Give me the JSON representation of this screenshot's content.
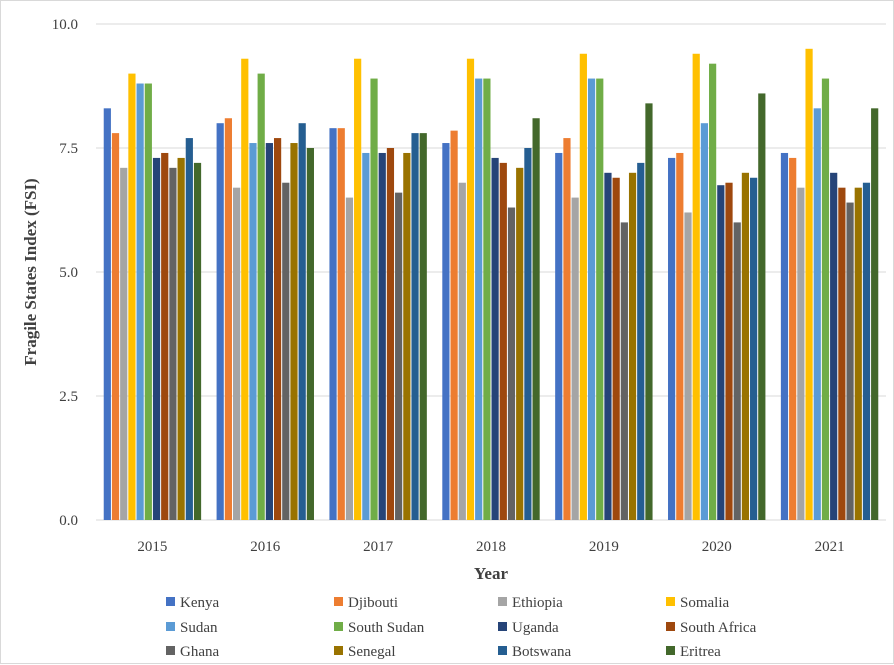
{
  "chart_data": {
    "type": "bar",
    "title": "",
    "xlabel": "Year",
    "ylabel": "Fragile States Index (FSI)",
    "ylim": [
      0,
      10
    ],
    "yticks": [
      "0.0",
      "2.5",
      "5.0",
      "7.5",
      "10.0"
    ],
    "grid": true,
    "legend_position": "bottom",
    "categories": [
      "2015",
      "2016",
      "2017",
      "2018",
      "2019",
      "2020",
      "2021"
    ],
    "series": [
      {
        "name": "Kenya",
        "color": "#4472C4",
        "values": [
          8.3,
          8.0,
          7.9,
          7.6,
          7.4,
          7.3,
          7.4
        ]
      },
      {
        "name": "Djibouti",
        "color": "#ED7D31",
        "values": [
          7.8,
          8.1,
          7.9,
          7.85,
          7.7,
          7.4,
          7.3
        ]
      },
      {
        "name": "Ethiopia",
        "color": "#A5A5A5",
        "values": [
          7.1,
          6.7,
          6.5,
          6.8,
          6.5,
          6.2,
          6.7
        ]
      },
      {
        "name": "Somalia",
        "color": "#FFC000",
        "values": [
          9.0,
          9.3,
          9.3,
          9.3,
          9.4,
          9.4,
          9.5
        ]
      },
      {
        "name": "Sudan",
        "color": "#5B9BD5",
        "values": [
          8.8,
          7.6,
          7.4,
          8.9,
          8.9,
          8.0,
          8.3
        ]
      },
      {
        "name": "South Sudan",
        "color": "#70AD47",
        "values": [
          8.8,
          9.0,
          8.9,
          8.9,
          8.9,
          9.2,
          8.9
        ]
      },
      {
        "name": "Uganda",
        "color": "#264478",
        "values": [
          7.3,
          7.6,
          7.4,
          7.3,
          7.0,
          6.75,
          7.0
        ]
      },
      {
        "name": "South Africa",
        "color": "#9E480E",
        "values": [
          7.4,
          7.7,
          7.5,
          7.2,
          6.9,
          6.8,
          6.7
        ]
      },
      {
        "name": "Ghana",
        "color": "#636363",
        "values": [
          7.1,
          6.8,
          6.6,
          6.3,
          6.0,
          6.0,
          6.4
        ]
      },
      {
        "name": "Senegal",
        "color": "#997300",
        "values": [
          7.3,
          7.6,
          7.4,
          7.1,
          7.0,
          7.0,
          6.7
        ]
      },
      {
        "name": "Botswana",
        "color": "#255E91",
        "values": [
          7.7,
          8.0,
          7.8,
          7.5,
          7.2,
          6.9,
          6.8
        ]
      },
      {
        "name": "Eritrea",
        "color": "#43682B",
        "values": [
          7.2,
          7.5,
          7.8,
          8.1,
          8.4,
          8.6,
          8.3
        ]
      }
    ]
  }
}
